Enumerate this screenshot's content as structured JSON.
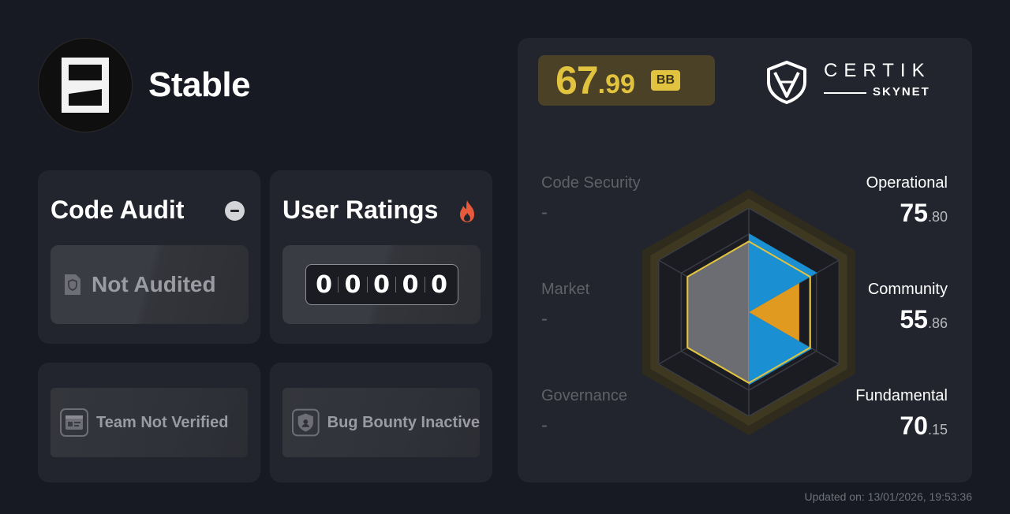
{
  "project": {
    "name": "Stable",
    "logo_icon": "stable-logo-icon"
  },
  "code_audit": {
    "title": "Code Audit",
    "status_icon": "minus-circle-icon",
    "result_icon": "shield-document-icon",
    "result": "Not Audited"
  },
  "user_ratings": {
    "title": "User Ratings",
    "icon": "fire-icon",
    "digits": [
      "0",
      "0",
      "0",
      "0",
      "0"
    ]
  },
  "team": {
    "icon": "id-card-icon",
    "label": "Team Not Verified"
  },
  "bug_bounty": {
    "icon": "shield-bug-icon",
    "label": "Bug Bounty Inactive"
  },
  "score": {
    "integer": "67",
    "decimal": ".99",
    "grade": "BB",
    "accent_color": "#e2c33f"
  },
  "brand": {
    "top": "CERTIK",
    "bottom": "SKYNET",
    "icon": "certik-shield-icon"
  },
  "metrics": {
    "code_security": {
      "label": "Code Security",
      "value": "-"
    },
    "market": {
      "label": "Market",
      "value": "-"
    },
    "governance": {
      "label": "Governance",
      "value": "-"
    },
    "operational": {
      "label": "Operational",
      "int": "75",
      "dec": ".80",
      "score": 75.8
    },
    "community": {
      "label": "Community",
      "int": "55",
      "dec": ".86",
      "score": 55.86
    },
    "fundamental": {
      "label": "Fundamental",
      "int": "70",
      "dec": ".15",
      "score": 70.15
    }
  },
  "colors": {
    "operational": "#1a8fd1",
    "community": "#e09a20",
    "fundamental": "#1a8fd1"
  },
  "updated": "Updated on: 13/01/2026, 19:53:36"
}
